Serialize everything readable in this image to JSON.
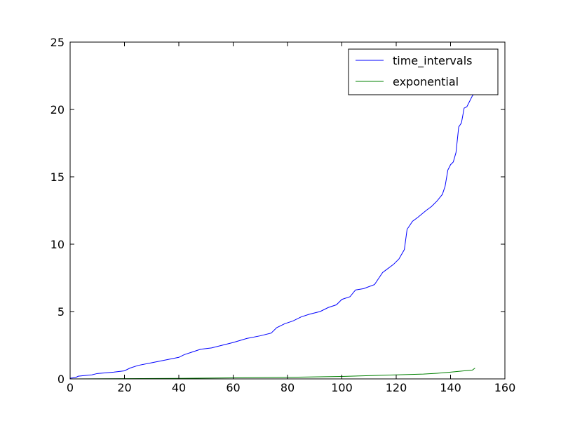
{
  "chart_data": {
    "type": "line",
    "title": "",
    "xlabel": "",
    "ylabel": "",
    "xlim": [
      0,
      160
    ],
    "ylim": [
      0,
      25
    ],
    "xticks": [
      0,
      20,
      40,
      60,
      80,
      100,
      120,
      140,
      160
    ],
    "yticks": [
      0,
      5,
      10,
      15,
      20,
      25
    ],
    "x_tick_labels": [
      "0",
      "20",
      "40",
      "60",
      "80",
      "100",
      "120",
      "140",
      "160"
    ],
    "y_tick_labels": [
      "0",
      "5",
      "10",
      "15",
      "20",
      "25"
    ],
    "grid": false,
    "legend": {
      "position": "upper right"
    },
    "series": [
      {
        "name": "time_intervals",
        "color": "#0000ff",
        "x": [
          0,
          2,
          3,
          8,
          10,
          16,
          20,
          22,
          25,
          30,
          35,
          40,
          42,
          45,
          48,
          52,
          56,
          60,
          65,
          70,
          74,
          76,
          79,
          82,
          85,
          88,
          92,
          95,
          98,
          100,
          103,
          105,
          108,
          112,
          115,
          117,
          119,
          121,
          123,
          124,
          126,
          128,
          131,
          133,
          135,
          137,
          138,
          139,
          140,
          141,
          142,
          143,
          144,
          145,
          146,
          147,
          148,
          148.8
        ],
        "y": [
          0.05,
          0.1,
          0.2,
          0.3,
          0.4,
          0.5,
          0.6,
          0.8,
          1.0,
          1.2,
          1.4,
          1.6,
          1.8,
          2.0,
          2.2,
          2.3,
          2.5,
          2.7,
          3.0,
          3.2,
          3.4,
          3.8,
          4.1,
          4.3,
          4.6,
          4.8,
          5.0,
          5.3,
          5.5,
          5.9,
          6.1,
          6.6,
          6.7,
          7.0,
          7.9,
          8.2,
          8.5,
          8.9,
          9.6,
          11.1,
          11.7,
          12.0,
          12.5,
          12.8,
          13.2,
          13.7,
          14.3,
          15.5,
          15.9,
          16.1,
          16.8,
          18.7,
          19.0,
          20.1,
          20.2,
          20.6,
          21.0,
          21.2
        ]
      },
      {
        "name": "exponential",
        "color": "#008000",
        "x": [
          0,
          20,
          40,
          60,
          80,
          100,
          110,
          120,
          130,
          135,
          140,
          145,
          148,
          149
        ],
        "y": [
          0.0,
          0.02,
          0.04,
          0.08,
          0.12,
          0.18,
          0.24,
          0.3,
          0.36,
          0.42,
          0.5,
          0.6,
          0.65,
          0.8
        ]
      }
    ]
  }
}
